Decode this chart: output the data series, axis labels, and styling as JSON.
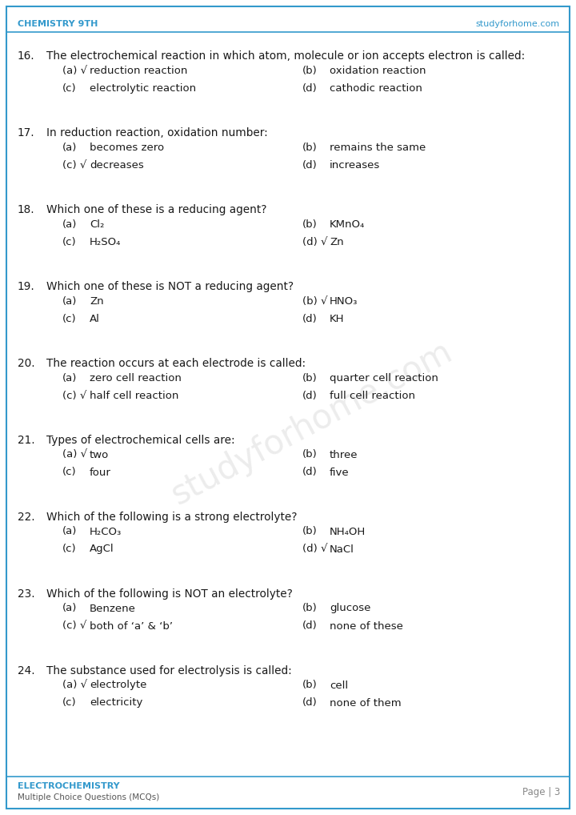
{
  "header_left": "CHEMISTRY 9TH",
  "header_right": "studyforhome.com",
  "footer_left_line1": "ELECTROCHEMISTRY",
  "footer_left_line2": "Multiple Choice Questions (MCQs)",
  "footer_right": "Page | 3",
  "accent_color": "#3399cc",
  "text_color": "#1a1a1a",
  "bg_color": "#ffffff",
  "questions": [
    {
      "num": "16.",
      "question": "The electrochemical reaction in which atom, molecule or ion accepts electron is called:",
      "a_check": true,
      "a": "reduction reaction",
      "b_check": false,
      "b": "oxidation reaction",
      "c_check": false,
      "c": "electrolytic reaction",
      "d_check": false,
      "d": "cathodic reaction"
    },
    {
      "num": "17.",
      "question": "In reduction reaction, oxidation number:",
      "a_check": false,
      "a": "becomes zero",
      "b_check": false,
      "b": "remains the same",
      "c_check": true,
      "c": "decreases",
      "d_check": false,
      "d": "increases"
    },
    {
      "num": "18.",
      "question": "Which one of these is a reducing agent?",
      "a_check": false,
      "a": "Cl₂",
      "b_check": false,
      "b": "KMnO₄",
      "c_check": false,
      "c": "H₂SO₄",
      "d_check": true,
      "d": "Zn"
    },
    {
      "num": "19.",
      "question": "Which one of these is NOT a reducing agent?",
      "a_check": false,
      "a": "Zn",
      "b_check": true,
      "b": "HNO₃",
      "c_check": false,
      "c": "Al",
      "d_check": false,
      "d": "KH"
    },
    {
      "num": "20.",
      "question": "The reaction occurs at each electrode is called:",
      "a_check": false,
      "a": "zero cell reaction",
      "b_check": false,
      "b": "quarter cell reaction",
      "c_check": true,
      "c": "half cell reaction",
      "d_check": false,
      "d": "full cell reaction"
    },
    {
      "num": "21.",
      "question": "Types of electrochemical cells are:",
      "a_check": true,
      "a": "two",
      "b_check": false,
      "b": "three",
      "c_check": false,
      "c": "four",
      "d_check": false,
      "d": "five"
    },
    {
      "num": "22.",
      "question": "Which of the following is a strong electrolyte?",
      "a_check": false,
      "a": "H₂CO₃",
      "b_check": false,
      "b": "NH₄OH",
      "c_check": false,
      "c": "AgCl",
      "d_check": true,
      "d": "NaCl"
    },
    {
      "num": "23.",
      "question": "Which of the following is NOT an electrolyte?",
      "a_check": false,
      "a": "Benzene",
      "b_check": false,
      "b": "glucose",
      "c_check": true,
      "c": "both of ‘a’ & ‘b’",
      "d_check": false,
      "d": "none of these"
    },
    {
      "num": "24.",
      "question": "The substance used for electrolysis is called:",
      "a_check": true,
      "a": "electrolyte",
      "b_check": false,
      "b": "cell",
      "c_check": false,
      "c": "electricity",
      "d_check": false,
      "d": "none of them"
    }
  ]
}
